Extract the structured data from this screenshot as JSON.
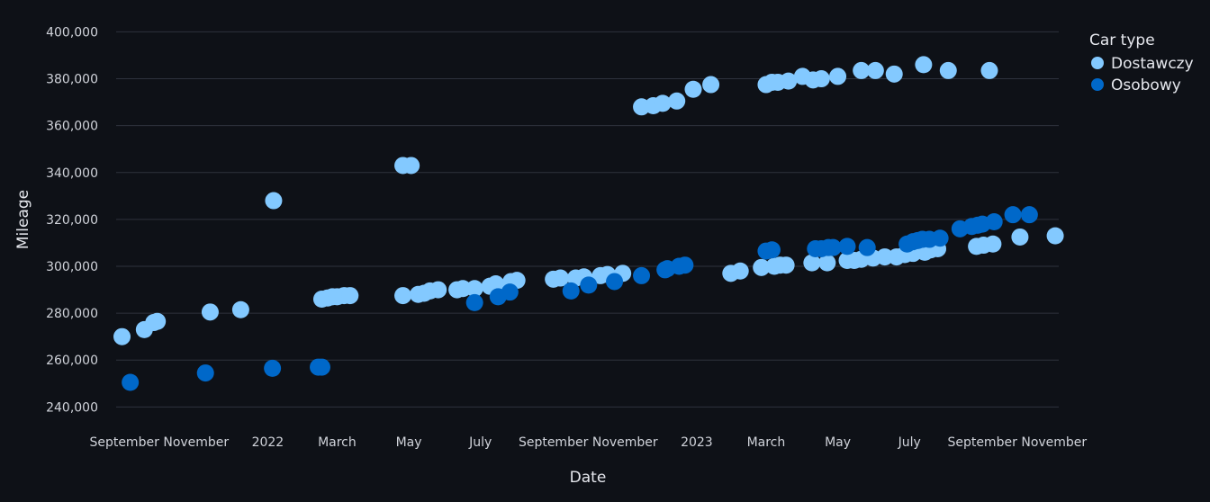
{
  "chart_data": {
    "type": "scatter",
    "xlabel": "Date",
    "ylabel": "Mileage",
    "legend_title": "Car type",
    "legend_position": "top-right",
    "grid": true,
    "xlim": [
      "2021-08-25",
      "2023-11-05"
    ],
    "ylim": [
      234000,
      404000
    ],
    "x_ticks": [
      {
        "date": "2021-09-01",
        "label": "September"
      },
      {
        "date": "2021-11-01",
        "label": "November"
      },
      {
        "date": "2022-01-01",
        "label": "2022"
      },
      {
        "date": "2022-03-01",
        "label": "March"
      },
      {
        "date": "2022-05-01",
        "label": "May"
      },
      {
        "date": "2022-07-01",
        "label": "July"
      },
      {
        "date": "2022-09-01",
        "label": "September"
      },
      {
        "date": "2022-11-01",
        "label": "November"
      },
      {
        "date": "2023-01-01",
        "label": "2023"
      },
      {
        "date": "2023-03-01",
        "label": "March"
      },
      {
        "date": "2023-05-01",
        "label": "May"
      },
      {
        "date": "2023-07-01",
        "label": "July"
      },
      {
        "date": "2023-09-01",
        "label": "September"
      },
      {
        "date": "2023-11-01",
        "label": "November"
      }
    ],
    "y_ticks": [
      {
        "value": 240000,
        "label": "240,000"
      },
      {
        "value": 260000,
        "label": "260,000"
      },
      {
        "value": 280000,
        "label": "280,000"
      },
      {
        "value": 300000,
        "label": "300,000"
      },
      {
        "value": 320000,
        "label": "320,000"
      },
      {
        "value": 340000,
        "label": "340,000"
      },
      {
        "value": 360000,
        "label": "360,000"
      },
      {
        "value": 380000,
        "label": "380,000"
      },
      {
        "value": 400000,
        "label": "400,000"
      }
    ],
    "series": [
      {
        "name": "Dostawczy",
        "color": "#83c9ff",
        "points": [
          [
            "2021-08-30",
            270000
          ],
          [
            "2021-09-18",
            273000
          ],
          [
            "2021-09-26",
            276000
          ],
          [
            "2021-09-29",
            276500
          ],
          [
            "2021-11-13",
            280500
          ],
          [
            "2021-12-09",
            281500
          ],
          [
            "2022-01-06",
            328000
          ],
          [
            "2022-02-16",
            286000
          ],
          [
            "2022-02-21",
            286500
          ],
          [
            "2022-02-25",
            287000
          ],
          [
            "2022-03-01",
            287000
          ],
          [
            "2022-03-07",
            287500
          ],
          [
            "2022-03-12",
            287500
          ],
          [
            "2022-04-26",
            343000
          ],
          [
            "2022-05-03",
            343000
          ],
          [
            "2022-04-26",
            287500
          ],
          [
            "2022-05-09",
            288000
          ],
          [
            "2022-05-14",
            288500
          ],
          [
            "2022-05-19",
            289500
          ],
          [
            "2022-05-26",
            290000
          ],
          [
            "2022-06-11",
            290000
          ],
          [
            "2022-06-16",
            290500
          ],
          [
            "2022-06-26",
            290500
          ],
          [
            "2022-07-09",
            291500
          ],
          [
            "2022-07-14",
            292500
          ],
          [
            "2022-07-27",
            293500
          ],
          [
            "2022-08-01",
            294000
          ],
          [
            "2022-09-01",
            294500
          ],
          [
            "2022-09-07",
            295000
          ],
          [
            "2022-09-20",
            295000
          ],
          [
            "2022-09-27",
            295500
          ],
          [
            "2022-10-11",
            296000
          ],
          [
            "2022-10-17",
            296500
          ],
          [
            "2022-10-30",
            297000
          ],
          [
            "2022-11-15",
            368000
          ],
          [
            "2022-11-25",
            368500
          ],
          [
            "2022-12-03",
            369500
          ],
          [
            "2022-12-15",
            370500
          ],
          [
            "2022-12-29",
            375500
          ],
          [
            "2023-01-13",
            377500
          ],
          [
            "2023-01-30",
            297000
          ],
          [
            "2023-02-07",
            298000
          ],
          [
            "2023-02-25",
            299500
          ],
          [
            "2023-03-01",
            377500
          ],
          [
            "2023-03-06",
            378500
          ],
          [
            "2023-03-11",
            378500
          ],
          [
            "2023-03-20",
            379000
          ],
          [
            "2023-04-01",
            381000
          ],
          [
            "2023-04-10",
            379500
          ],
          [
            "2023-04-17",
            380000
          ],
          [
            "2023-05-01",
            381000
          ],
          [
            "2023-03-08",
            300000
          ],
          [
            "2023-03-13",
            300500
          ],
          [
            "2023-03-18",
            300500
          ],
          [
            "2023-04-09",
            301500
          ],
          [
            "2023-04-22",
            301500
          ],
          [
            "2023-05-09",
            302500
          ],
          [
            "2023-05-15",
            302500
          ],
          [
            "2023-05-21",
            303000
          ],
          [
            "2023-05-31",
            303500
          ],
          [
            "2023-06-10",
            304000
          ],
          [
            "2023-05-21",
            383500
          ],
          [
            "2023-06-02",
            383500
          ],
          [
            "2023-06-18",
            382000
          ],
          [
            "2023-06-20",
            304000
          ],
          [
            "2023-06-27",
            305000
          ],
          [
            "2023-07-04",
            305500
          ],
          [
            "2023-07-14",
            306000
          ],
          [
            "2023-07-19",
            307000
          ],
          [
            "2023-07-25",
            307500
          ],
          [
            "2023-07-13",
            386000
          ],
          [
            "2023-08-03",
            383500
          ],
          [
            "2023-09-07",
            383500
          ],
          [
            "2023-08-27",
            308500
          ],
          [
            "2023-09-02",
            309000
          ],
          [
            "2023-09-10",
            309500
          ],
          [
            "2023-10-03",
            312500
          ],
          [
            "2023-11-02",
            313000
          ]
        ]
      },
      {
        "name": "Osobowy",
        "color": "#0068c9",
        "points": [
          [
            "2021-09-06",
            250500
          ],
          [
            "2021-11-09",
            254500
          ],
          [
            "2022-01-05",
            256500
          ],
          [
            "2022-02-13",
            257000
          ],
          [
            "2022-02-16",
            257000
          ],
          [
            "2022-06-26",
            284500
          ],
          [
            "2022-07-16",
            287000
          ],
          [
            "2022-07-26",
            289000
          ],
          [
            "2022-09-16",
            289500
          ],
          [
            "2022-10-01",
            292000
          ],
          [
            "2022-10-23",
            293500
          ],
          [
            "2022-11-15",
            296000
          ],
          [
            "2022-12-05",
            298500
          ],
          [
            "2022-12-07",
            299000
          ],
          [
            "2022-12-17",
            300000
          ],
          [
            "2022-12-22",
            300500
          ],
          [
            "2023-03-01",
            306500
          ],
          [
            "2023-03-06",
            307000
          ],
          [
            "2023-04-12",
            307500
          ],
          [
            "2023-04-17",
            307500
          ],
          [
            "2023-04-23",
            308000
          ],
          [
            "2023-04-27",
            308000
          ],
          [
            "2023-05-09",
            308500
          ],
          [
            "2023-05-26",
            308000
          ],
          [
            "2023-06-29",
            309500
          ],
          [
            "2023-07-04",
            310500
          ],
          [
            "2023-07-08",
            311000
          ],
          [
            "2023-07-12",
            311500
          ],
          [
            "2023-07-18",
            311500
          ],
          [
            "2023-07-27",
            312000
          ],
          [
            "2023-08-13",
            316000
          ],
          [
            "2023-08-23",
            317000
          ],
          [
            "2023-08-28",
            317500
          ],
          [
            "2023-09-01",
            318000
          ],
          [
            "2023-09-11",
            319000
          ],
          [
            "2023-09-27",
            322000
          ],
          [
            "2023-10-11",
            322000
          ]
        ]
      }
    ]
  }
}
